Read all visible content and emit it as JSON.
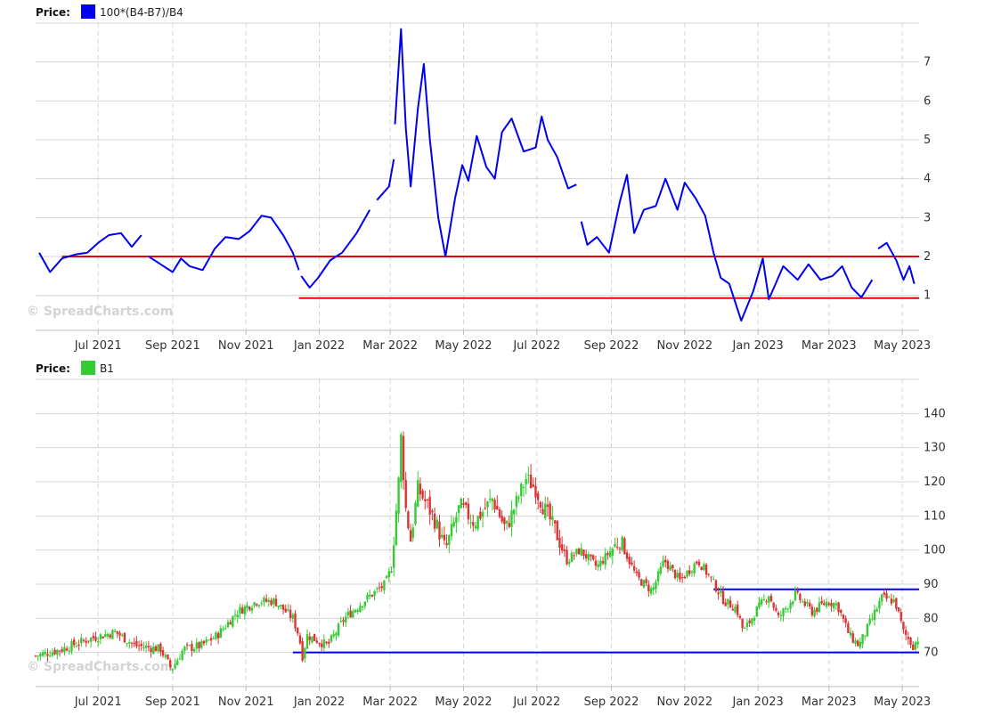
{
  "watermark": "© SpreadCharts.com",
  "legend_price_label": "Price:",
  "chart_data": [
    {
      "type": "line",
      "legend_label": "Price:",
      "x_tick_labels": [
        "Jul 2021",
        "Sep 2021",
        "Nov 2021",
        "Jan 2022",
        "Mar 2022",
        "May 2022",
        "Jul 2022",
        "Sep 2022",
        "Nov 2022",
        "Jan 2023",
        "Mar 2023",
        "May 2023"
      ],
      "y_ticks": [
        1,
        2,
        3,
        4,
        5,
        6,
        7
      ],
      "ylim": [
        0.1,
        8.0
      ],
      "x_range": [
        "2021-05-10",
        "2023-05-15"
      ],
      "grid": true,
      "legend_position": "top-left",
      "series": [
        {
          "name": "100*(B4-B7)/B4",
          "color": "#0000ee",
          "points": [
            [
              "2021-05-13",
              2.1
            ],
            [
              "2021-05-22",
              1.6
            ],
            [
              "2021-06-01",
              1.95
            ],
            [
              "2021-06-12",
              2.05
            ],
            [
              "2021-06-22",
              2.1
            ],
            [
              "2021-07-01",
              2.35
            ],
            [
              "2021-07-10",
              2.55
            ],
            [
              "2021-07-20",
              2.6
            ],
            [
              "2021-07-29",
              2.25
            ],
            [
              "2021-08-06",
              2.55
            ],
            null,
            [
              "2021-08-12",
              2.0
            ],
            [
              "2021-08-22",
              1.8
            ],
            [
              "2021-09-01",
              1.6
            ],
            [
              "2021-09-08",
              1.95
            ],
            [
              "2021-09-15",
              1.75
            ],
            [
              "2021-09-26",
              1.65
            ],
            [
              "2021-10-06",
              2.2
            ],
            [
              "2021-10-15",
              2.5
            ],
            [
              "2021-10-26",
              2.45
            ],
            [
              "2021-11-04",
              2.65
            ],
            [
              "2021-11-14",
              3.05
            ],
            [
              "2021-11-22",
              3.0
            ],
            [
              "2021-12-02",
              2.55
            ],
            [
              "2021-12-10",
              2.1
            ],
            [
              "2021-12-15",
              1.65
            ],
            null,
            [
              "2021-12-17",
              1.5
            ],
            [
              "2021-12-24",
              1.2
            ],
            [
              "2021-12-31",
              1.45
            ],
            [
              "2022-01-10",
              1.9
            ],
            [
              "2022-01-20",
              2.1
            ],
            [
              "2022-02-01",
              2.6
            ],
            [
              "2022-02-12",
              3.2
            ],
            null,
            [
              "2022-02-18",
              3.45
            ],
            [
              "2022-02-28",
              3.8
            ],
            [
              "2022-03-04",
              4.5
            ],
            null,
            [
              "2022-03-05",
              5.4
            ],
            [
              "2022-03-10",
              7.85
            ],
            [
              "2022-03-14",
              5.3
            ],
            [
              "2022-03-18",
              3.8
            ],
            [
              "2022-03-24",
              5.8
            ],
            [
              "2022-03-29",
              6.95
            ],
            [
              "2022-04-03",
              5.0
            ],
            [
              "2022-04-10",
              3.0
            ],
            [
              "2022-04-16",
              2.0
            ],
            [
              "2022-04-24",
              3.5
            ],
            [
              "2022-04-30",
              4.35
            ],
            [
              "2022-05-05",
              3.95
            ],
            [
              "2022-05-12",
              5.1
            ],
            [
              "2022-05-20",
              4.3
            ],
            [
              "2022-05-27",
              4.0
            ],
            [
              "2022-06-02",
              5.2
            ],
            [
              "2022-06-10",
              5.55
            ],
            [
              "2022-06-20",
              4.7
            ],
            [
              "2022-06-30",
              4.8
            ],
            [
              "2022-07-05",
              5.6
            ],
            [
              "2022-07-10",
              5.0
            ],
            [
              "2022-07-18",
              4.55
            ],
            [
              "2022-07-27",
              3.75
            ],
            [
              "2022-08-03",
              3.85
            ],
            null,
            [
              "2022-08-07",
              2.9
            ],
            [
              "2022-08-12",
              2.3
            ],
            [
              "2022-08-20",
              2.5
            ],
            [
              "2022-08-30",
              2.1
            ],
            [
              "2022-09-08",
              3.4
            ],
            [
              "2022-09-14",
              4.1
            ],
            [
              "2022-09-20",
              2.6
            ],
            [
              "2022-09-28",
              3.2
            ],
            [
              "2022-10-08",
              3.3
            ],
            [
              "2022-10-16",
              4.0
            ],
            [
              "2022-10-26",
              3.2
            ],
            [
              "2022-11-01",
              3.9
            ],
            [
              "2022-11-10",
              3.5
            ],
            [
              "2022-11-18",
              3.05
            ],
            [
              "2022-11-25",
              2.1
            ],
            [
              "2022-12-01",
              1.45
            ],
            [
              "2022-12-08",
              1.3
            ],
            [
              "2022-12-18",
              0.35
            ],
            [
              "2022-12-28",
              1.1
            ],
            [
              "2023-01-05",
              1.95
            ],
            [
              "2023-01-10",
              0.9
            ],
            [
              "2023-01-22",
              1.75
            ],
            [
              "2023-02-03",
              1.4
            ],
            [
              "2023-02-12",
              1.8
            ],
            [
              "2023-02-22",
              1.4
            ],
            [
              "2023-03-04",
              1.5
            ],
            [
              "2023-03-12",
              1.75
            ],
            [
              "2023-03-20",
              1.2
            ],
            [
              "2023-03-28",
              0.95
            ],
            [
              "2023-04-06",
              1.4
            ],
            null,
            [
              "2023-04-11",
              2.2
            ],
            [
              "2023-04-18",
              2.35
            ],
            [
              "2023-04-26",
              1.9
            ],
            [
              "2023-05-02",
              1.4
            ],
            [
              "2023-05-07",
              1.75
            ],
            [
              "2023-05-11",
              1.3
            ]
          ]
        }
      ],
      "reference_lines": [
        {
          "y": 2.0,
          "x_from": "2021-06-01",
          "x_to": "2023-05-15",
          "color": "#ee0000"
        },
        {
          "y": 0.93,
          "x_from": "2021-12-15",
          "x_to": "2023-05-15",
          "color": "#ee0000"
        }
      ]
    },
    {
      "type": "candlestick",
      "legend_label": "Price:",
      "x_tick_labels": [
        "Jul 2021",
        "Sep 2021",
        "Nov 2021",
        "Jan 2022",
        "Mar 2022",
        "May 2022",
        "Jul 2022",
        "Sep 2022",
        "Nov 2022",
        "Jan 2023",
        "Mar 2023",
        "May 2023"
      ],
      "y_ticks": [
        70,
        80,
        90,
        100,
        110,
        120,
        130,
        140
      ],
      "ylim": [
        60,
        150
      ],
      "x_range": [
        "2021-05-10",
        "2023-05-15"
      ],
      "grid": true,
      "legend_position": "top-left",
      "series": [
        {
          "name": "B1",
          "color": "#33cc33",
          "up_color": "#33cc33",
          "down_color": "#dd3333",
          "close_path": [
            [
              "2021-05-10",
              69
            ],
            [
              "2021-06-01",
              71
            ],
            [
              "2021-06-24",
              74
            ],
            [
              "2021-07-15",
              76
            ],
            [
              "2021-08-01",
              72
            ],
            [
              "2021-08-22",
              71
            ],
            [
              "2021-08-31",
              65
            ],
            [
              "2021-09-10",
              71
            ],
            [
              "2021-09-25",
              72
            ],
            [
              "2021-10-08",
              75
            ],
            [
              "2021-10-25",
              82
            ],
            [
              "2021-11-10",
              85
            ],
            [
              "2021-11-25",
              85
            ],
            [
              "2021-12-10",
              80
            ],
            [
              "2021-12-15",
              75
            ],
            [
              "2021-12-18",
              69
            ],
            [
              "2021-12-22",
              75
            ],
            [
              "2022-01-08",
              72
            ],
            [
              "2022-01-22",
              80
            ],
            [
              "2022-02-10",
              86
            ],
            [
              "2022-02-25",
              90
            ],
            [
              "2022-03-02",
              95
            ],
            [
              "2022-03-08",
              120
            ],
            [
              "2022-03-10",
              133
            ],
            [
              "2022-03-14",
              112
            ],
            [
              "2022-03-18",
              103
            ],
            [
              "2022-03-24",
              118
            ],
            [
              "2022-04-01",
              113
            ],
            [
              "2022-04-08",
              108
            ],
            [
              "2022-04-16",
              100
            ],
            [
              "2022-04-28",
              113
            ],
            [
              "2022-05-10",
              108
            ],
            [
              "2022-05-25",
              115
            ],
            [
              "2022-06-05",
              106
            ],
            [
              "2022-06-22",
              121
            ],
            [
              "2022-06-30",
              118
            ],
            [
              "2022-07-06",
              113
            ],
            [
              "2022-07-16",
              106
            ],
            [
              "2022-07-26",
              97
            ],
            [
              "2022-08-06",
              100
            ],
            [
              "2022-08-20",
              95
            ],
            [
              "2022-09-08",
              103
            ],
            [
              "2022-09-22",
              92
            ],
            [
              "2022-10-05",
              88
            ],
            [
              "2022-10-15",
              97
            ],
            [
              "2022-10-28",
              91
            ],
            [
              "2022-11-12",
              97
            ],
            [
              "2022-11-22",
              92
            ],
            [
              "2022-12-04",
              85
            ],
            [
              "2022-12-14",
              83
            ],
            [
              "2022-12-20",
              76
            ],
            [
              "2022-12-30",
              82
            ],
            [
              "2023-01-10",
              87
            ],
            [
              "2023-01-18",
              80
            ],
            [
              "2023-02-01",
              87
            ],
            [
              "2023-02-15",
              82
            ],
            [
              "2023-02-28",
              85
            ],
            [
              "2023-03-08",
              84
            ],
            [
              "2023-03-18",
              75
            ],
            [
              "2023-03-26",
              72
            ],
            [
              "2023-04-06",
              80
            ],
            [
              "2023-04-14",
              86
            ],
            [
              "2023-04-25",
              85
            ],
            [
              "2023-05-02",
              76
            ],
            [
              "2023-05-10",
              72
            ],
            [
              "2023-05-14",
              74
            ]
          ]
        }
      ],
      "reference_lines": [
        {
          "y": 88.5,
          "x_from": "2022-11-25",
          "x_to": "2023-05-15",
          "color": "#0000ee"
        },
        {
          "y": 70,
          "x_from": "2021-12-10",
          "x_to": "2023-05-15",
          "color": "#0000ee"
        }
      ]
    }
  ]
}
